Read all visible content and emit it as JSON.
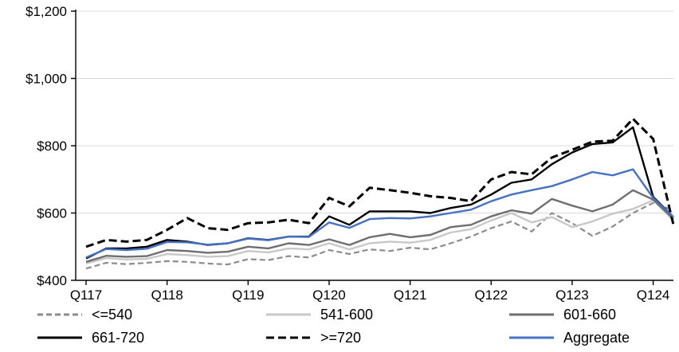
{
  "chart_data": {
    "type": "line",
    "title": "",
    "xlabel": "",
    "ylabel": "",
    "ylim": [
      400,
      1200
    ],
    "y_ticks": [
      400,
      600,
      800,
      1000,
      1200
    ],
    "y_tick_labels": [
      "$400",
      "$600",
      "$800",
      "$1,000",
      "$1,200"
    ],
    "x_tick_labels": [
      "Q117",
      "Q118",
      "Q119",
      "Q120",
      "Q121",
      "Q122",
      "Q123",
      "Q124"
    ],
    "x_tick_indices": [
      0,
      4,
      8,
      12,
      16,
      20,
      24,
      28
    ],
    "grid": "horizontal",
    "gridline_color": "#D9D9D9",
    "axis_color": "#000000",
    "legend_position": "bottom",
    "quarters": [
      "2017 Q1",
      "2017 Q2",
      "2017 Q3",
      "2017 Q4",
      "2018 Q1",
      "2018 Q2",
      "2018 Q3",
      "2018 Q4",
      "2019 Q1",
      "2019 Q2",
      "2019 Q3",
      "2019 Q4",
      "2020 Q1",
      "2020 Q2",
      "2020 Q3",
      "2020 Q4",
      "2021 Q1",
      "2021 Q2",
      "2021 Q3",
      "2021 Q4",
      "2022 Q1",
      "2022 Q2",
      "2022 Q3",
      "2022 Q4",
      "2023 Q1",
      "2023 Q2",
      "2023 Q3",
      "2023 Q4",
      "2024 Q1",
      "2024 Q2"
    ],
    "series": [
      {
        "name": "<=540",
        "color": "#8C8C8C",
        "dash": "7,4",
        "width": 2.2,
        "values": [
          435,
          452,
          448,
          452,
          457,
          455,
          450,
          447,
          463,
          460,
          472,
          468,
          490,
          478,
          492,
          487,
          497,
          492,
          510,
          530,
          555,
          575,
          545,
          600,
          570,
          532,
          560,
          600,
          630,
          608
        ]
      },
      {
        "name": "541-600",
        "color": "#C8C8C8",
        "dash": null,
        "width": 2.4,
        "values": [
          450,
          466,
          462,
          464,
          478,
          475,
          470,
          472,
          487,
          483,
          495,
          492,
          510,
          492,
          510,
          515,
          512,
          520,
          542,
          552,
          578,
          600,
          572,
          588,
          558,
          575,
          598,
          612,
          638,
          578
        ]
      },
      {
        "name": "601-660",
        "color": "#6E6E6E",
        "dash": null,
        "width": 2.4,
        "values": [
          455,
          473,
          470,
          472,
          490,
          487,
          482,
          485,
          500,
          495,
          510,
          505,
          522,
          505,
          528,
          538,
          528,
          535,
          558,
          565,
          590,
          608,
          598,
          642,
          622,
          605,
          625,
          668,
          640,
          583
        ]
      },
      {
        "name": "661-720",
        "color": "#000000",
        "dash": null,
        "width": 2.4,
        "values": [
          465,
          495,
          495,
          500,
          520,
          515,
          505,
          510,
          525,
          520,
          530,
          530,
          590,
          565,
          605,
          605,
          605,
          600,
          615,
          625,
          655,
          690,
          700,
          745,
          780,
          805,
          810,
          855,
          648,
          588
        ]
      },
      {
        "name": ">=720",
        "color": "#000000",
        "dash": "10,5",
        "width": 3,
        "values": [
          500,
          520,
          515,
          520,
          550,
          585,
          555,
          550,
          570,
          572,
          580,
          570,
          645,
          620,
          675,
          668,
          660,
          650,
          645,
          635,
          700,
          722,
          715,
          765,
          788,
          812,
          815,
          880,
          820,
          565
        ]
      },
      {
        "name": "Aggregate",
        "color": "#4472C4",
        "dash": null,
        "width": 2.4,
        "values": [
          468,
          493,
          490,
          494,
          514,
          513,
          506,
          510,
          524,
          519,
          530,
          529,
          572,
          556,
          582,
          585,
          584,
          590,
          600,
          610,
          635,
          655,
          668,
          680,
          700,
          722,
          712,
          730,
          645,
          588
        ]
      }
    ]
  }
}
